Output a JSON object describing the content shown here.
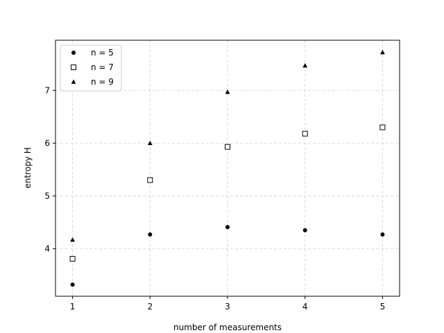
{
  "chart_data": {
    "type": "scatter",
    "title": "",
    "xlabel": "number of measurements",
    "ylabel": "entropy H",
    "x": [
      1,
      2,
      3,
      4,
      5
    ],
    "xlim": [
      0.78,
      5.22
    ],
    "ylim": [
      3.1,
      7.95
    ],
    "xticks": [
      "1",
      "2",
      "3",
      "4",
      "5"
    ],
    "yticks": [
      "4",
      "5",
      "6",
      "7"
    ],
    "grid": true,
    "legend_position": "top-left",
    "series": [
      {
        "name": "n = 5",
        "marker": "circle",
        "values": [
          3.32,
          4.27,
          4.41,
          4.35,
          4.27
        ]
      },
      {
        "name": "n = 7",
        "marker": "square",
        "values": [
          3.81,
          5.3,
          5.93,
          6.18,
          6.3
        ]
      },
      {
        "name": "n = 9",
        "marker": "triangle",
        "values": [
          4.17,
          6.0,
          6.97,
          7.47,
          7.72
        ]
      }
    ]
  }
}
